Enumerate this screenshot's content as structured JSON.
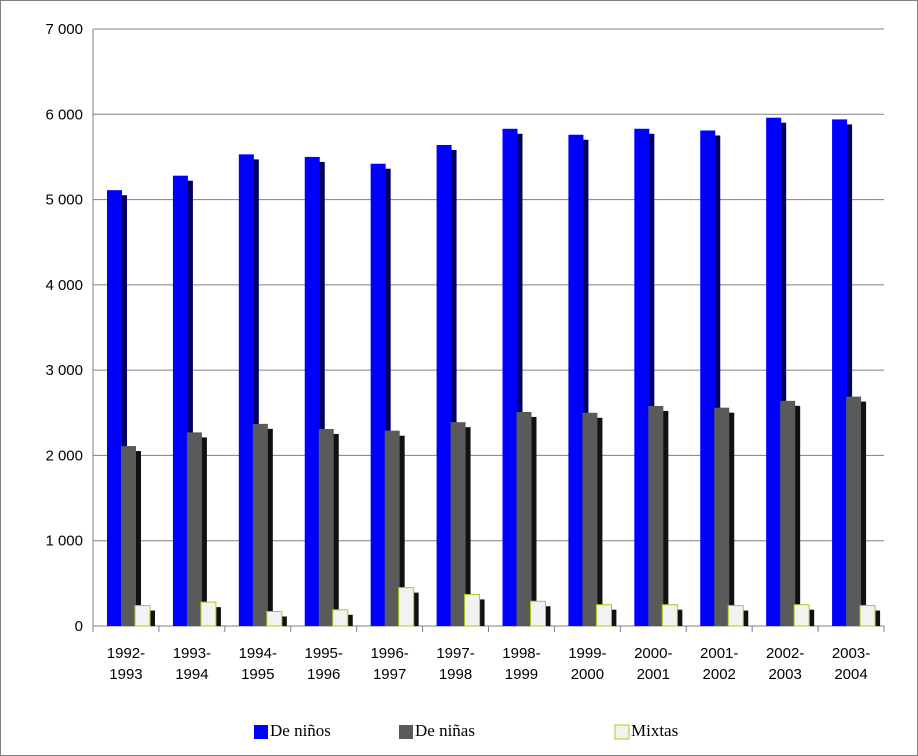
{
  "chart_data": {
    "type": "bar",
    "categories": [
      [
        "1992-",
        "1993"
      ],
      [
        "1993-",
        "1994"
      ],
      [
        "1994-",
        "1995"
      ],
      [
        "1995-",
        "1996"
      ],
      [
        "1996-",
        "1997"
      ],
      [
        "1997-",
        "1998"
      ],
      [
        "1998-",
        "1999"
      ],
      [
        "1999-",
        "2000"
      ],
      [
        "2000-",
        "2001"
      ],
      [
        "2001-",
        "2002"
      ],
      [
        "2002-",
        "2003"
      ],
      [
        "2003-",
        "2004"
      ]
    ],
    "series": [
      {
        "name": "De niños",
        "color": "#0000ff",
        "side_color": "#000066",
        "values": [
          5110,
          5280,
          5530,
          5500,
          5420,
          5640,
          5830,
          5760,
          5830,
          5810,
          5960,
          5940
        ]
      },
      {
        "name": "De niñas",
        "color": "#5a5a5a",
        "side_color": "#111111",
        "values": [
          2110,
          2270,
          2370,
          2310,
          2290,
          2390,
          2510,
          2500,
          2580,
          2560,
          2640,
          2690
        ]
      },
      {
        "name": "Mixtas",
        "color": "#f2f2f2",
        "side_color": "#111111",
        "border": "#aacc22",
        "values": [
          240,
          280,
          170,
          190,
          450,
          370,
          290,
          250,
          250,
          240,
          250,
          240
        ]
      }
    ],
    "yticks": [
      "0",
      "1 000",
      "2 000",
      "3 000",
      "4 000",
      "5 000",
      "6 000",
      "7 000"
    ],
    "ylim": [
      0,
      7000
    ],
    "grid": true,
    "legend_position": "bottom"
  }
}
